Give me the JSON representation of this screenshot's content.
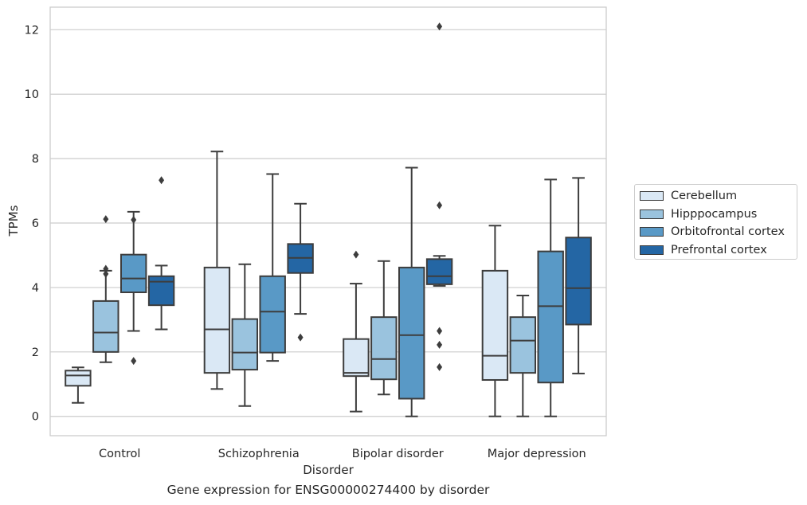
{
  "chart_data": {
    "type": "box",
    "categories": [
      "Control",
      "Schizophrenia",
      "Bipolar disorder",
      "Major depression"
    ],
    "xlabel": "Disorder",
    "ylabel": "TPMs",
    "caption": "Gene expression for ENSG00000274400 by disorder",
    "ylim": [
      -0.6,
      12.7
    ],
    "yticks": [
      0,
      2,
      4,
      6,
      8,
      10,
      12
    ],
    "grid": "horizontal",
    "legend_position": "right",
    "series": [
      {
        "name": "Cerebellum",
        "color": "#dae8f5",
        "boxes": [
          {
            "whislo": 0.42,
            "q1": 0.95,
            "med": 1.27,
            "q3": 1.42,
            "whishi": 1.52,
            "fliers": []
          },
          {
            "whislo": 0.85,
            "q1": 1.35,
            "med": 2.7,
            "q3": 4.62,
            "whishi": 8.22,
            "fliers": []
          },
          {
            "whislo": 0.15,
            "q1": 1.25,
            "med": 1.35,
            "q3": 2.4,
            "whishi": 4.12,
            "fliers": [
              5.02
            ]
          },
          {
            "whislo": 0.0,
            "q1": 1.13,
            "med": 1.88,
            "q3": 4.52,
            "whishi": 5.92,
            "fliers": []
          }
        ]
      },
      {
        "name": "Hipppocampus",
        "color": "#9ac3de",
        "boxes": [
          {
            "whislo": 1.68,
            "q1": 2.0,
            "med": 2.6,
            "q3": 3.58,
            "whishi": 4.52,
            "fliers": [
              6.12,
              4.58,
              4.42
            ]
          },
          {
            "whislo": 0.32,
            "q1": 1.45,
            "med": 1.98,
            "q3": 3.02,
            "whishi": 4.72,
            "fliers": []
          },
          {
            "whislo": 0.68,
            "q1": 1.15,
            "med": 1.78,
            "q3": 3.08,
            "whishi": 4.82,
            "fliers": []
          },
          {
            "whislo": 0.0,
            "q1": 1.35,
            "med": 2.35,
            "q3": 3.08,
            "whishi": 3.75,
            "fliers": []
          }
        ]
      },
      {
        "name": "Orbitofrontal cortex",
        "color": "#5999c6",
        "boxes": [
          {
            "whislo": 2.65,
            "q1": 3.85,
            "med": 4.28,
            "q3": 5.02,
            "whishi": 6.35,
            "fliers": [
              6.1,
              1.72
            ]
          },
          {
            "whislo": 1.72,
            "q1": 1.98,
            "med": 3.25,
            "q3": 4.35,
            "whishi": 7.52,
            "fliers": []
          },
          {
            "whislo": 0.0,
            "q1": 0.55,
            "med": 2.52,
            "q3": 4.62,
            "whishi": 7.72,
            "fliers": []
          },
          {
            "whislo": 0.0,
            "q1": 1.05,
            "med": 3.42,
            "q3": 5.12,
            "whishi": 7.35,
            "fliers": []
          }
        ]
      },
      {
        "name": "Prefrontal cortex",
        "color": "#2466a4",
        "boxes": [
          {
            "whislo": 2.7,
            "q1": 3.45,
            "med": 4.18,
            "q3": 4.35,
            "whishi": 4.68,
            "fliers": [
              7.33
            ]
          },
          {
            "whislo": 3.18,
            "q1": 4.45,
            "med": 4.92,
            "q3": 5.35,
            "whishi": 6.6,
            "fliers": [
              2.45
            ]
          },
          {
            "whislo": 4.05,
            "q1": 4.1,
            "med": 4.35,
            "q3": 4.88,
            "whishi": 4.98,
            "fliers": [
              12.1,
              6.55,
              2.65,
              2.22,
              1.53
            ]
          },
          {
            "whislo": 1.33,
            "q1": 2.85,
            "med": 3.98,
            "q3": 5.55,
            "whishi": 7.4,
            "fliers": []
          }
        ]
      }
    ]
  }
}
